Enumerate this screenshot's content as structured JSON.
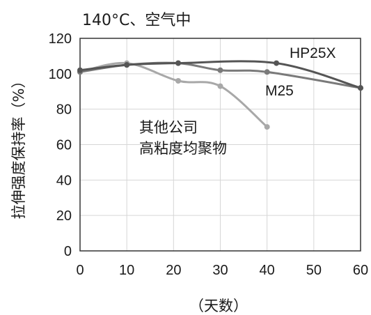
{
  "chart_data": {
    "type": "line",
    "title": "140°C、空气中",
    "xlabel": "（天数）",
    "ylabel": "拉伸强度保持率（%）",
    "xlim": [
      0,
      60
    ],
    "ylim": [
      0,
      120
    ],
    "xticks": [
      "0",
      "10",
      "20",
      "30",
      "40",
      "50",
      "60"
    ],
    "yticks": [
      "0",
      "20",
      "40",
      "60",
      "80",
      "100",
      "120"
    ],
    "grid": true,
    "series": [
      {
        "name": "HP25X",
        "color": "#555555",
        "x": [
          0,
          10,
          21,
          42,
          60
        ],
        "y": [
          102,
          105,
          106,
          106,
          92
        ]
      },
      {
        "name": "M25",
        "color": "#7a7a7a",
        "x": [
          0,
          10,
          21,
          30,
          40,
          60
        ],
        "y": [
          101,
          105,
          106,
          102,
          101,
          92
        ]
      },
      {
        "name": "其他公司\n高粘度均聚物",
        "color": "#a8a8a8",
        "x": [
          0,
          10,
          21,
          30,
          40
        ],
        "y": [
          101,
          106,
          96,
          93,
          70
        ]
      }
    ],
    "annotation": [
      "其他公司",
      "高粘度均聚物"
    ]
  }
}
